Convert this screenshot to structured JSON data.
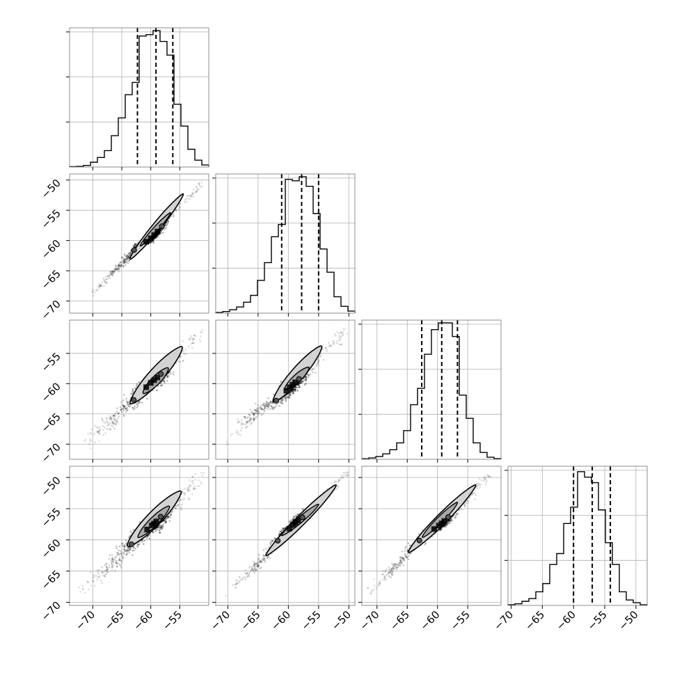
{
  "chart_data": {
    "type": "corner",
    "n_params": 4,
    "grid": true,
    "colors": {
      "hist": "#000000",
      "quantile_line": "#000000",
      "contour_line": "#000000",
      "points": "#000000",
      "fill": "#d3d3d3",
      "frame": "#8c8c8c",
      "grid": "#b0b0b0"
    },
    "params": [
      {
        "range": [
          -74,
          -50
        ],
        "ticks": [
          -70,
          -65,
          -60,
          -55
        ],
        "tick_labels": [
          "−70",
          "−65",
          "−60",
          "−55"
        ]
      },
      {
        "range": [
          -72,
          -49
        ],
        "ticks": [
          -70,
          -65,
          -60,
          -55,
          -50
        ],
        "tick_labels": [
          "−70",
          "−65",
          "−60",
          "−55",
          "−50"
        ]
      },
      {
        "range": [
          -72.5,
          -49.5
        ],
        "ticks": [
          -70,
          -65,
          -60,
          -55
        ],
        "tick_labels": [
          "−70",
          "−65",
          "−60",
          "−55"
        ]
      },
      {
        "range": [
          -70.5,
          -48.2
        ],
        "ticks": [
          -70,
          -65,
          -60,
          -55,
          -50
        ],
        "tick_labels": [
          "−70",
          "−65",
          "−60",
          "−55",
          "−50"
        ]
      }
    ],
    "histograms": [
      {
        "param": 0,
        "edges": [
          -74.0,
          -72.8,
          -71.6,
          -70.4,
          -69.2,
          -68.0,
          -66.8,
          -65.6,
          -64.4,
          -63.2,
          -62.0,
          -60.8,
          -59.6,
          -58.4,
          -57.2,
          -56.0,
          -54.8,
          -53.6,
          -52.4,
          -51.2,
          -50.0
        ],
        "counts": [
          0.003,
          0.005,
          0.012,
          0.035,
          0.07,
          0.12,
          0.23,
          0.36,
          0.53,
          0.62,
          0.96,
          0.97,
          1.0,
          0.92,
          0.82,
          0.46,
          0.3,
          0.13,
          0.05,
          0.015
        ],
        "quantiles": [
          -62.3,
          -59.1,
          -56.2
        ]
      },
      {
        "param": 1,
        "edges": [
          -72.0,
          -70.85,
          -69.7,
          -68.55,
          -67.4,
          -66.25,
          -65.1,
          -63.95,
          -62.8,
          -61.65,
          -60.5,
          -59.35,
          -58.2,
          -57.05,
          -55.9,
          -54.75,
          -53.6,
          -52.45,
          -51.3,
          -50.15,
          -49.0
        ],
        "counts": [
          0.005,
          0.012,
          0.025,
          0.045,
          0.08,
          0.13,
          0.24,
          0.37,
          0.56,
          0.65,
          0.98,
          0.97,
          1.0,
          0.93,
          0.73,
          0.47,
          0.3,
          0.12,
          0.05,
          0.015
        ],
        "quantiles": [
          -61.1,
          -57.8,
          -55.0
        ]
      },
      {
        "param": 2,
        "edges": [
          -72.5,
          -71.35,
          -70.2,
          -69.05,
          -67.9,
          -66.75,
          -65.6,
          -64.45,
          -63.3,
          -62.15,
          -61.0,
          -59.85,
          -58.7,
          -57.55,
          -56.4,
          -55.25,
          -54.1,
          -52.95,
          -51.8,
          -50.65,
          -49.5
        ],
        "counts": [
          0.004,
          0.01,
          0.02,
          0.04,
          0.07,
          0.12,
          0.21,
          0.4,
          0.52,
          0.77,
          0.95,
          1.0,
          1.0,
          0.9,
          0.47,
          0.3,
          0.12,
          0.05,
          0.015,
          0.005
        ],
        "quantiles": [
          -62.6,
          -59.3,
          -56.7
        ]
      },
      {
        "param": 3,
        "edges": [
          -70.5,
          -69.385,
          -68.27,
          -67.155,
          -66.04,
          -64.925,
          -63.81,
          -62.695,
          -61.58,
          -60.465,
          -59.35,
          -58.235,
          -57.12,
          -56.005,
          -54.89,
          -53.775,
          -52.66,
          -51.545,
          -50.43,
          -49.315,
          -48.2
        ],
        "counts": [
          0.005,
          0.012,
          0.03,
          0.05,
          0.1,
          0.16,
          0.3,
          0.38,
          0.6,
          0.72,
          0.98,
          0.94,
          0.9,
          0.7,
          0.46,
          0.3,
          0.1,
          0.04,
          0.02,
          0.005
        ],
        "quantiles": [
          -60.0,
          -57.0,
          -54.1
        ]
      }
    ],
    "pairs": [
      {
        "x_param": 0,
        "y_param": 1,
        "contour_outer": [
          [
            -63.6,
            -63.1
          ],
          [
            -54.4,
            -52.3
          ]
        ],
        "contour_inner": [
          [
            -61.8,
            -60.9
          ],
          [
            -56.6,
            -55.4
          ]
        ],
        "points": [
          [
            -70.5,
            -69.3
          ],
          [
            -68.0,
            -66.7
          ],
          [
            -65.5,
            -64.3
          ],
          [
            -62.5,
            -61.2
          ],
          [
            -60.3,
            -59.9
          ],
          [
            -59.0,
            -58.7
          ],
          [
            -57.8,
            -57.3
          ],
          [
            -56.5,
            -55.3
          ],
          [
            -52.5,
            -52.0
          ],
          [
            -51.0,
            -50.3
          ]
        ],
        "width_scale": 0.7
      },
      {
        "x_param": 0,
        "y_param": 2,
        "contour_outer": [
          [
            -63.5,
            -63.3
          ],
          [
            -54.6,
            -53.9
          ]
        ],
        "contour_inner": [
          [
            -61.3,
            -61.6
          ],
          [
            -57.0,
            -57.4
          ]
        ],
        "points": [
          [
            -71.0,
            -70.0
          ],
          [
            -68.5,
            -67.5
          ],
          [
            -66.0,
            -65.5
          ],
          [
            -62.5,
            -62.3
          ],
          [
            -60.3,
            -60.1
          ],
          [
            -59.0,
            -59.1
          ],
          [
            -58.0,
            -58.2
          ],
          [
            -57.0,
            -57.6
          ],
          [
            -53.0,
            -53.0
          ],
          [
            -51.0,
            -51.2
          ]
        ],
        "width_scale": 1.5
      },
      {
        "x_param": 1,
        "y_param": 2,
        "contour_outer": [
          [
            -62.5,
            -63.0
          ],
          [
            -54.5,
            -53.8
          ]
        ],
        "contour_inner": [
          [
            -60.6,
            -61.0
          ],
          [
            -56.6,
            -57.3
          ]
        ],
        "points": [
          [
            -70.5,
            -70.0
          ],
          [
            -68.0,
            -67.2
          ],
          [
            -65.5,
            -65.0
          ],
          [
            -61.5,
            -62.5
          ],
          [
            -60.0,
            -60.8
          ],
          [
            -59.0,
            -59.9
          ],
          [
            -58.0,
            -59.0
          ],
          [
            -56.8,
            -57.7
          ],
          [
            -52.0,
            -53.0
          ],
          [
            -50.5,
            -51.2
          ]
        ],
        "width_scale": 1.3
      },
      {
        "x_param": 0,
        "y_param": 3,
        "contour_outer": [
          [
            -64.0,
            -61.0
          ],
          [
            -54.8,
            -52.2
          ]
        ],
        "contour_inner": [
          [
            -62.2,
            -59.6
          ],
          [
            -56.8,
            -54.6
          ]
        ],
        "points": [
          [
            -72.0,
            -68.6
          ],
          [
            -69.5,
            -66.2
          ],
          [
            -66.5,
            -63.6
          ],
          [
            -62.9,
            -60.3
          ],
          [
            -60.0,
            -57.8
          ],
          [
            -59.2,
            -57.2
          ],
          [
            -58.0,
            -56.0
          ],
          [
            -56.7,
            -54.9
          ],
          [
            -53.0,
            -51.5
          ],
          [
            -51.0,
            -49.2
          ]
        ],
        "width_scale": 1.5
      },
      {
        "x_param": 1,
        "y_param": 3,
        "contour_outer": [
          [
            -63.7,
            -62.5
          ],
          [
            -52.1,
            -51.2
          ]
        ],
        "contour_inner": [
          [
            -61.1,
            -59.3
          ],
          [
            -55.0,
            -54.3
          ]
        ],
        "points": [
          [
            -70.5,
            -68.8
          ],
          [
            -68.0,
            -66.5
          ],
          [
            -65.0,
            -64.0
          ],
          [
            -61.3,
            -59.6
          ],
          [
            -59.4,
            -57.8
          ],
          [
            -58.5,
            -57.0
          ],
          [
            -57.4,
            -56.2
          ],
          [
            -55.2,
            -54.2
          ],
          [
            -51.0,
            -49.8
          ],
          [
            -50.0,
            -48.8
          ]
        ],
        "width_scale": 0.9
      },
      {
        "x_param": 2,
        "y_param": 3,
        "contour_outer": [
          [
            -64.8,
            -62.0
          ],
          [
            -53.7,
            -51.2
          ]
        ],
        "contour_inner": [
          [
            -62.5,
            -59.6
          ],
          [
            -56.7,
            -54.0
          ]
        ],
        "points": [
          [
            -71.5,
            -68.6
          ],
          [
            -69.0,
            -66.3
          ],
          [
            -66.5,
            -63.8
          ],
          [
            -62.5,
            -59.6
          ],
          [
            -60.0,
            -57.9
          ],
          [
            -59.0,
            -57.1
          ],
          [
            -58.0,
            -56.1
          ],
          [
            -56.6,
            -54.7
          ],
          [
            -52.5,
            -50.6
          ],
          [
            -51.0,
            -49.0
          ]
        ],
        "width_scale": 1.0
      }
    ]
  }
}
